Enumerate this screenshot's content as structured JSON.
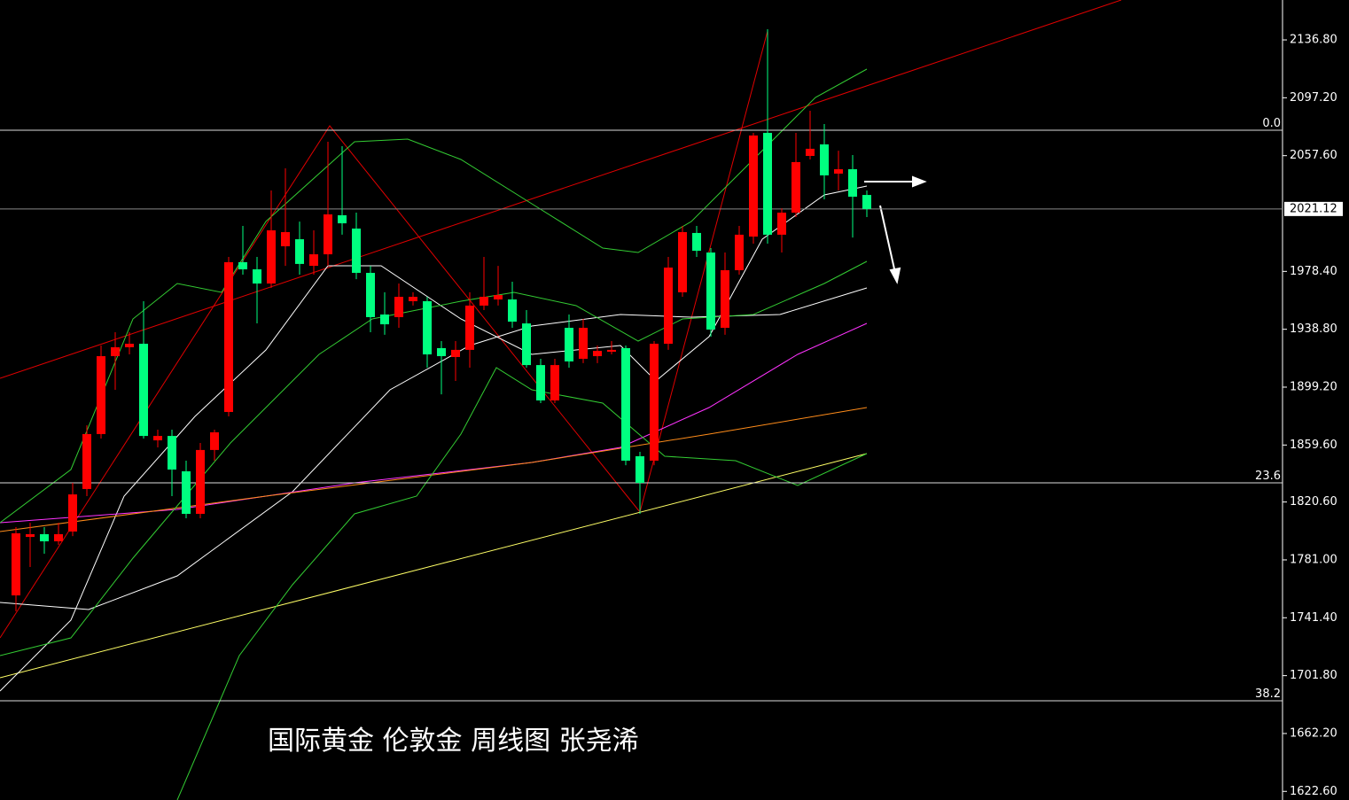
{
  "chart_data": {
    "type": "candlestick",
    "annotation": "国际黄金 伦敦金 周线图 张尧浠",
    "ylim": [
      1616.7,
      2164.1
    ],
    "yticks": [
      {
        "value": 2136.8,
        "label": "2136.80"
      },
      {
        "value": 2097.2,
        "label": "2097.20"
      },
      {
        "value": 2057.6,
        "label": "2057.60"
      },
      {
        "value": 1978.4,
        "label": "1978.40"
      },
      {
        "value": 1938.8,
        "label": "1938.80"
      },
      {
        "value": 1899.2,
        "label": "1899.20"
      },
      {
        "value": 1859.6,
        "label": "1859.60"
      },
      {
        "value": 1820.6,
        "label": "1820.60"
      },
      {
        "value": 1781,
        "label": "1781.00"
      },
      {
        "value": 1741.4,
        "label": "1741.40"
      },
      {
        "value": 1701.8,
        "label": "1701.80"
      },
      {
        "value": 1662.2,
        "label": "1662.20"
      },
      {
        "value": 1622.6,
        "label": "1622.60"
      }
    ],
    "last_price": 2021.12,
    "levels": [
      {
        "label": "0.0",
        "price": 2075.0
      },
      {
        "label": "23.6",
        "price": 1833.7
      },
      {
        "label": "38.2",
        "price": 1684.6
      }
    ],
    "up_color": "#ff0000",
    "down_color": "#00ff80",
    "open": [
      1756.7,
      1796.7,
      1798.6,
      1793.7,
      1800.4,
      1829.5,
      1867.1,
      1920.4,
      1926.5,
      1928.9,
      1862.8,
      1865.8,
      1841.6,
      1812.5,
      1856.2,
      1882.2,
      1984.7,
      1979.8,
      1970.1,
      1995.6,
      2000.4,
      1982.2,
      1990.1,
      2016.8,
      2007.7,
      1977.4,
      1948.9,
      1947.1,
      1958.0,
      1958.0,
      1925.9,
      1919.8,
      1924.7,
      1955.0,
      1959.2,
      1959.2,
      1942.8,
      1914.3,
      1890.1,
      1939.8,
      1918.6,
      1920.4,
      1923.4,
      1925.9,
      1851.9,
      1848.9,
      1928.9,
      1964.1,
      2004.7,
      1991.3,
      1939.8,
      1979.2,
      2002.2,
      2073.2,
      2003.5,
      2018.6,
      2057.4,
      2065.3,
      2045.3,
      2048.3,
      2030.7
    ],
    "high": [
      1803.4,
      1806.4,
      1803.4,
      1806.4,
      1833.7,
      1873.1,
      1927.7,
      1936.8,
      1936.8,
      1958.0,
      1870.1,
      1870.1,
      1848.9,
      1861.0,
      1870.1,
      1988.3,
      2009.5,
      1988.3,
      2033.8,
      2048.9,
      2012.5,
      2006.5,
      2067.1,
      2064.1,
      2018.6,
      1982.2,
      1964.1,
      1970.1,
      1964.1,
      1961.0,
      1930.7,
      1930.7,
      1964.1,
      1988.3,
      1982.2,
      1971.3,
      1951.9,
      1918.6,
      1918.6,
      1948.9,
      1945.9,
      1927.7,
      1930.7,
      1927.7,
      1854.9,
      1930.7,
      1988.3,
      2009.5,
      2009.5,
      1994.4,
      1991.3,
      2009.5,
      2073.2,
      2144.1,
      2021.6,
      2073.2,
      2088.3,
      2079.2,
      2061.0,
      2058.0,
      2033.8
    ],
    "low": [
      1745.8,
      1776.1,
      1785.2,
      1791.3,
      1797.3,
      1824.6,
      1864.0,
      1897.4,
      1921.6,
      1864.0,
      1858.0,
      1824.6,
      1809.5,
      1809.5,
      1848.9,
      1879.2,
      1976.2,
      1942.8,
      1967.1,
      1982.2,
      1976.2,
      1976.2,
      1982.2,
      2003.5,
      1973.1,
      1936.8,
      1935.0,
      1939.8,
      1955.0,
      1912.5,
      1894.3,
      1903.4,
      1912.5,
      1951.9,
      1955.0,
      1939.8,
      1912.5,
      1888.3,
      1888.3,
      1912.5,
      1915.6,
      1915.6,
      1921.6,
      1845.8,
      1812.5,
      1845.8,
      1924.7,
      1961.0,
      1988.3,
      1933.7,
      1935.0,
      1976.2,
      1997.4,
      1997.4,
      1991.3,
      2015.6,
      2055.0,
      2027.7,
      2033.8,
      2001.6,
      2015.6
    ],
    "close": [
      1799.2,
      1798.6,
      1793.7,
      1798.6,
      1825.8,
      1867.1,
      1920.4,
      1926.5,
      1928.9,
      1865.8,
      1865.8,
      1842.8,
      1812.5,
      1856.2,
      1868.3,
      1984.7,
      1979.8,
      1970.1,
      2006.5,
      2005.3,
      1983.5,
      1990.1,
      2017.4,
      2011.3,
      1977.4,
      1947.1,
      1942.2,
      1961.0,
      1961.0,
      1921.6,
      1920.4,
      1924.7,
      1955.0,
      1961.0,
      1962.2,
      1944.0,
      1914.3,
      1890.1,
      1914.3,
      1916.8,
      1939.8,
      1924.0,
      1924.7,
      1848.9,
      1833.7,
      1928.9,
      1981.0,
      2005.3,
      1992.5,
      1938.6,
      1979.2,
      2003.5,
      2071.4,
      2003.5,
      2018.6,
      2053.2,
      2062.3,
      2044.1,
      2048.3,
      2029.5,
      2021.12
    ]
  }
}
